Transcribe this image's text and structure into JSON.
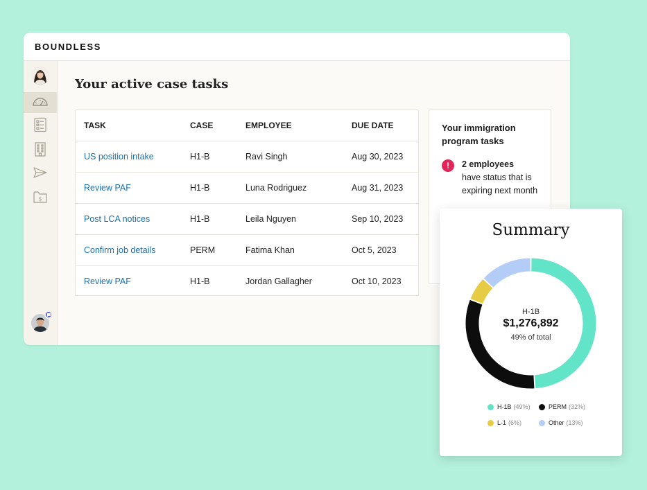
{
  "brand": "BOUNDLESS",
  "page_title": "Your active case tasks",
  "sidebar": {
    "items": [
      {
        "icon": "dashboard-gauge-icon",
        "active": true
      },
      {
        "icon": "list-document-icon",
        "active": false
      },
      {
        "icon": "building-icon",
        "active": false
      },
      {
        "icon": "send-icon",
        "active": false
      },
      {
        "icon": "folder-dollar-icon",
        "active": false
      }
    ]
  },
  "tasks_table": {
    "headers": {
      "task": "TASK",
      "case": "CASE",
      "employee": "EMPLOYEE",
      "due": "DUE DATE"
    },
    "rows": [
      {
        "task": "US position intake",
        "case": "H1-B",
        "employee": "Ravi Singh",
        "due": "Aug 30, 2023"
      },
      {
        "task": "Review PAF",
        "case": "H1-B",
        "employee": "Luna Rodriguez",
        "due": "Aug 31, 2023"
      },
      {
        "task": "Post LCA notices",
        "case": "H1-B",
        "employee": "Leila Nguyen",
        "due": "Sep 10, 2023"
      },
      {
        "task": "Confirm job details",
        "case": "PERM",
        "employee": "Fatima Khan",
        "due": "Oct 5, 2023"
      },
      {
        "task": "Review PAF",
        "case": "H1-B",
        "employee": "Jordan Gallagher",
        "due": "Oct 10, 2023"
      }
    ]
  },
  "program_tasks": {
    "title": "Your immigration program tasks",
    "alert_icon": "!",
    "alert_bold": "2 employees",
    "alert_rest": "have status that is expiring next month"
  },
  "summary": {
    "title": "Summary",
    "center_label": "H-1B",
    "center_value": "$1,276,892",
    "center_sub": "49% of total"
  },
  "chart_data": {
    "type": "pie",
    "title": "Summary",
    "categories": [
      "H-1B",
      "PERM",
      "L-1",
      "Other"
    ],
    "values": [
      49,
      32,
      6,
      13
    ],
    "legend": [
      {
        "name": "H-1B",
        "pct": "(49%)",
        "color": "#62e4c8"
      },
      {
        "name": "PERM",
        "pct": "(32%)",
        "color": "#0d0d0d"
      },
      {
        "name": "L-1",
        "pct": "(6%)",
        "color": "#e6cc45"
      },
      {
        "name": "Other",
        "pct": "(13%)",
        "color": "#b4cdf6"
      }
    ]
  }
}
